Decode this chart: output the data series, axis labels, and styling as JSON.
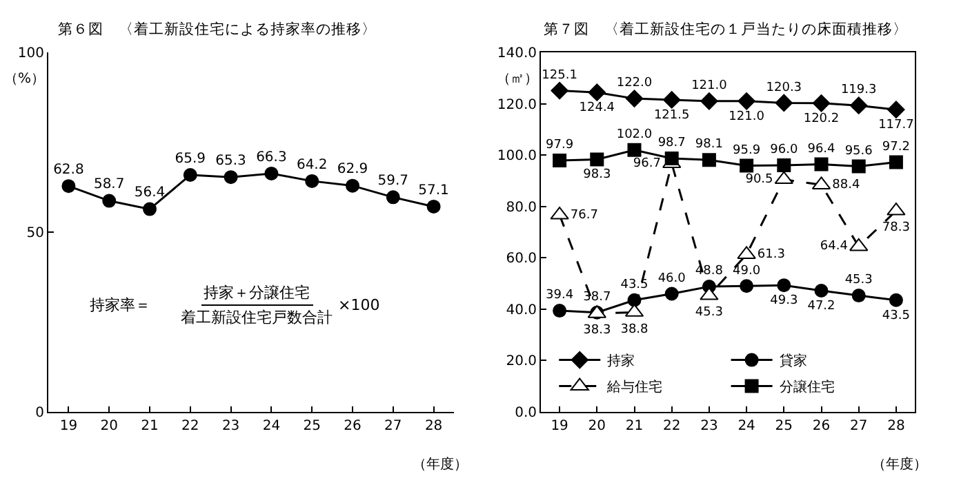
{
  "chart_data": [
    {
      "type": "line",
      "title": "第６図　〈着工新設住宅による持家率の推移〉",
      "ylabel": "（%）",
      "xlabel": "（年度）",
      "categories": [
        "19",
        "20",
        "21",
        "22",
        "23",
        "24",
        "25",
        "26",
        "27",
        "28"
      ],
      "series": [
        {
          "color": "#000000",
          "values": [
            62.8,
            58.7,
            56.4,
            65.9,
            65.3,
            66.3,
            64.2,
            62.9,
            59.7,
            57.1
          ]
        }
      ],
      "ylim": [
        0,
        100
      ],
      "yticks": [
        0,
        50,
        100
      ],
      "grid": false,
      "legend": false,
      "marker": "circle",
      "line_style": "solid",
      "data_labels": true,
      "annotations": [
        "持家率＝",
        "持家＋分譲住宅",
        "着工新設住宅戸数合計",
        "×100"
      ]
    },
    {
      "type": "line",
      "title": "第７図　〈着工新設住宅の１戸当たりの床面積推移〉",
      "ylabel": "（㎡）",
      "xlabel": "（年度）",
      "categories": [
        "19",
        "20",
        "21",
        "22",
        "23",
        "24",
        "25",
        "26",
        "27",
        "28"
      ],
      "series": [
        {
          "name": "持家",
          "color": "#000000",
          "marker": "diamond",
          "line_style": "solid",
          "values": [
            125.1,
            124.4,
            122.0,
            121.5,
            121.0,
            121.0,
            120.3,
            120.2,
            119.3,
            117.7
          ],
          "value_labels": [
            "125.1",
            "124.4",
            "122.0",
            "121.5",
            "121.0",
            "121.0",
            "120.3",
            "120.2",
            "119.3",
            "117.7"
          ]
        },
        {
          "name": "貸家",
          "color": "#000000",
          "marker": "circle",
          "line_style": "solid",
          "values": [
            39.4,
            38.7,
            43.5,
            46.0,
            48.8,
            49.0,
            49.3,
            47.2,
            45.3,
            43.5
          ],
          "value_labels": [
            "39.4",
            "38.7",
            "43.5",
            "46.0",
            "48.8",
            "49.0",
            "49.3",
            "47.2",
            "45.3",
            "43.5"
          ]
        },
        {
          "name": "給与住宅",
          "color": "#000000",
          "marker": "triangle",
          "line_style": "dashed",
          "values": [
            76.7,
            38.3,
            38.8,
            96.7,
            45.3,
            61.3,
            90.5,
            88.4,
            64.4,
            78.3
          ],
          "value_labels": [
            "76.7",
            "38.3",
            "38.8",
            "96.7",
            "45.3",
            "61.3",
            "90.5",
            "88.4",
            "64.4",
            "78.3"
          ]
        },
        {
          "name": "分譲住宅",
          "color": "#000000",
          "marker": "square",
          "line_style": "solid",
          "values": [
            97.9,
            98.3,
            102.0,
            98.7,
            98.1,
            95.9,
            96.0,
            96.4,
            95.6,
            97.2
          ],
          "value_labels": [
            "97.9",
            "98.3",
            "102.0",
            "98.7",
            "98.1",
            "95.9",
            "96.0",
            "96.4",
            "95.6",
            "97.2"
          ]
        }
      ],
      "ylim": [
        0,
        140
      ],
      "yticks": [
        {
          "value": 0,
          "label": "0.0"
        },
        {
          "value": 20,
          "label": "20.0"
        },
        {
          "value": 40,
          "label": "40.0"
        },
        {
          "value": 60,
          "label": "60.0"
        },
        {
          "value": 80,
          "label": "80.0"
        },
        {
          "value": 100,
          "label": "100.0"
        },
        {
          "value": 120,
          "label": "120.0"
        },
        {
          "value": 140,
          "label": "140.0"
        }
      ],
      "grid": false,
      "legend": "bottom"
    }
  ]
}
